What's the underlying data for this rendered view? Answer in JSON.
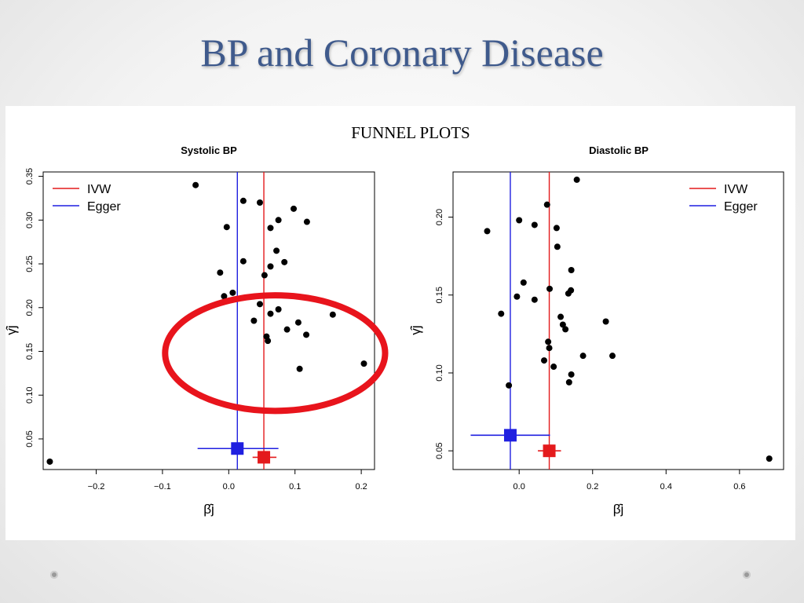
{
  "slide": {
    "title": "BP and Coronary Disease",
    "subtitle": "FUNNEL PLOTS"
  },
  "colors": {
    "title": "#3f5a8c",
    "ivw": "#e41a1c",
    "egger": "#1f1fe0",
    "highlight": "#e8141c",
    "points": "#000000"
  },
  "chart_data": [
    {
      "type": "scatter",
      "title": "Systolic BP",
      "xlabel": "β̂j",
      "ylabel": "γ̂j",
      "xlim": [
        -0.28,
        0.22
      ],
      "ylim": [
        0.015,
        0.355
      ],
      "xticks": [
        -0.2,
        -0.1,
        0.0,
        0.1,
        0.2
      ],
      "xtick_labels": [
        "−0.2",
        "−0.1",
        "0.0",
        "0.1",
        "0.2"
      ],
      "yticks": [
        0.05,
        0.1,
        0.15,
        0.2,
        0.25,
        0.3,
        0.35
      ],
      "ytick_labels": [
        "0.05",
        "0.10",
        "0.15",
        "0.20",
        "0.25",
        "0.30",
        "0.35"
      ],
      "legend": {
        "position": "top-left",
        "entries": [
          {
            "label": "IVW",
            "color": "#e41a1c"
          },
          {
            "label": "Egger",
            "color": "#1f1fe0"
          }
        ]
      },
      "lines": {
        "ivw": 0.053,
        "egger": 0.013
      },
      "estimates": [
        {
          "series": "Egger",
          "x": 0.013,
          "y": 0.039,
          "ci": [
            -0.047,
            0.075
          ],
          "color": "#1f1fe0"
        },
        {
          "series": "IVW",
          "x": 0.053,
          "y": 0.029,
          "ci": [
            0.036,
            0.072
          ],
          "color": "#e41a1c"
        }
      ],
      "points": [
        [
          -0.05,
          0.34
        ],
        [
          0.022,
          0.322
        ],
        [
          0.047,
          0.32
        ],
        [
          0.098,
          0.313
        ],
        [
          0.075,
          0.3
        ],
        [
          0.118,
          0.298
        ],
        [
          -0.003,
          0.292
        ],
        [
          0.063,
          0.291
        ],
        [
          0.072,
          0.265
        ],
        [
          0.022,
          0.253
        ],
        [
          0.084,
          0.252
        ],
        [
          0.063,
          0.247
        ],
        [
          -0.013,
          0.24
        ],
        [
          0.054,
          0.237
        ],
        [
          0.006,
          0.217
        ],
        [
          -0.007,
          0.213
        ],
        [
          0.047,
          0.204
        ],
        [
          0.075,
          0.198
        ],
        [
          0.063,
          0.193
        ],
        [
          0.157,
          0.192
        ],
        [
          0.038,
          0.185
        ],
        [
          0.105,
          0.183
        ],
        [
          0.088,
          0.175
        ],
        [
          0.117,
          0.169
        ],
        [
          0.057,
          0.167
        ],
        [
          0.059,
          0.162
        ],
        [
          0.107,
          0.13
        ],
        [
          0.204,
          0.136
        ],
        [
          -0.27,
          0.024
        ]
      ],
      "highlight": {
        "shape": "ellipse",
        "cx": 0.07,
        "cy": 0.148,
        "rx": 0.166,
        "ry": 0.066
      }
    },
    {
      "type": "scatter",
      "title": "Diastolic BP",
      "xlabel": "β̂j",
      "ylabel": "γ̂j",
      "xlim": [
        -0.18,
        0.72
      ],
      "ylim": [
        0.038,
        0.229
      ],
      "xticks": [
        0.0,
        0.2,
        0.4,
        0.6
      ],
      "xtick_labels": [
        "0.0",
        "0.2",
        "0.4",
        "0.6"
      ],
      "yticks": [
        0.05,
        0.1,
        0.15,
        0.2
      ],
      "ytick_labels": [
        "0.05",
        "0.10",
        "0.15",
        "0.20"
      ],
      "legend": {
        "position": "top-right",
        "entries": [
          {
            "label": "IVW",
            "color": "#e41a1c"
          },
          {
            "label": "Egger",
            "color": "#1f1fe0"
          }
        ]
      },
      "lines": {
        "ivw": 0.082,
        "egger": -0.024
      },
      "estimates": [
        {
          "series": "Egger",
          "x": -0.024,
          "y": 0.06,
          "ci": [
            -0.132,
            0.084
          ],
          "color": "#1f1fe0"
        },
        {
          "series": "IVW",
          "x": 0.082,
          "y": 0.05,
          "ci": [
            0.051,
            0.114
          ],
          "color": "#e41a1c"
        }
      ],
      "points": [
        [
          0.157,
          0.224
        ],
        [
          0.076,
          0.208
        ],
        [
          0.0,
          0.198
        ],
        [
          -0.087,
          0.191
        ],
        [
          0.042,
          0.195
        ],
        [
          0.102,
          0.193
        ],
        [
          0.104,
          0.181
        ],
        [
          0.142,
          0.166
        ],
        [
          0.012,
          0.158
        ],
        [
          0.083,
          0.154
        ],
        [
          0.141,
          0.153
        ],
        [
          0.134,
          0.151
        ],
        [
          -0.006,
          0.149
        ],
        [
          0.042,
          0.147
        ],
        [
          -0.049,
          0.138
        ],
        [
          0.113,
          0.136
        ],
        [
          0.236,
          0.133
        ],
        [
          0.119,
          0.131
        ],
        [
          0.126,
          0.128
        ],
        [
          0.079,
          0.12
        ],
        [
          0.082,
          0.116
        ],
        [
          0.174,
          0.111
        ],
        [
          0.254,
          0.111
        ],
        [
          0.068,
          0.108
        ],
        [
          0.094,
          0.104
        ],
        [
          0.142,
          0.099
        ],
        [
          0.136,
          0.094
        ],
        [
          -0.028,
          0.092
        ],
        [
          0.681,
          0.045
        ]
      ]
    }
  ]
}
